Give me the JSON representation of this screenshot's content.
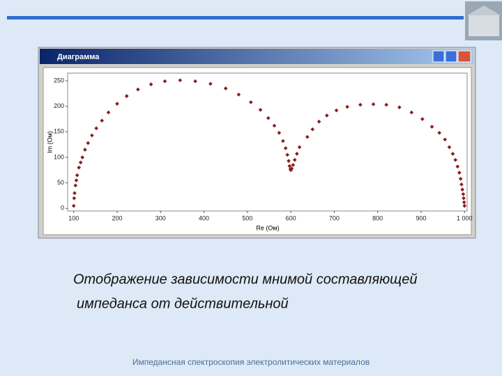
{
  "window": {
    "title": "Диаграмма"
  },
  "chart_data": {
    "type": "scatter",
    "xlabel": "Re (Ом)",
    "ylabel": "Im (Ом)",
    "x": [
      100,
      101,
      102,
      104,
      106,
      108,
      112,
      116,
      120,
      126,
      133,
      142,
      152,
      165,
      180,
      200,
      222,
      248,
      278,
      310,
      345,
      380,
      415,
      450,
      480,
      508,
      530,
      548,
      562,
      573,
      582,
      588,
      592,
      595,
      597,
      599,
      600,
      602,
      605,
      609,
      614,
      620,
      638,
      650,
      665,
      683,
      705,
      730,
      760,
      790,
      820,
      850,
      878,
      903,
      925,
      942,
      955,
      965,
      973,
      979,
      984,
      988,
      991,
      993,
      995,
      997,
      998,
      999,
      1000
    ],
    "series": [
      {
        "color": "#8b1c1c",
        "values": [
          5,
          20,
          30,
          45,
          55,
          65,
          80,
          90,
          100,
          115,
          128,
          143,
          157,
          172,
          188,
          205,
          220,
          233,
          243,
          249,
          251,
          249,
          244,
          235,
          223,
          208,
          193,
          177,
          162,
          148,
          132,
          118,
          105,
          93,
          83,
          77,
          75,
          78,
          85,
          95,
          107,
          120,
          140,
          155,
          170,
          182,
          192,
          199,
          203,
          204,
          203,
          198,
          188,
          175,
          160,
          148,
          135,
          120,
          107,
          95,
          82,
          70,
          58,
          47,
          37,
          28,
          20,
          12,
          5
        ]
      }
    ],
    "xlim": [
      86,
      1006
    ],
    "ylim": [
      -5,
      265
    ],
    "xticks": [
      100,
      200,
      300,
      400,
      500,
      600,
      700,
      800,
      900,
      {
        "value": 1000,
        "label": "1 000"
      }
    ],
    "yticks": [
      0,
      50,
      100,
      150,
      200,
      250
    ],
    "grid": false
  },
  "slide": {
    "caption": [
      "Отображение зависимости мнимой составляющей",
      "импеданса от действительной"
    ],
    "footer": "Импедансная спектроскопия электролитических материалов"
  }
}
